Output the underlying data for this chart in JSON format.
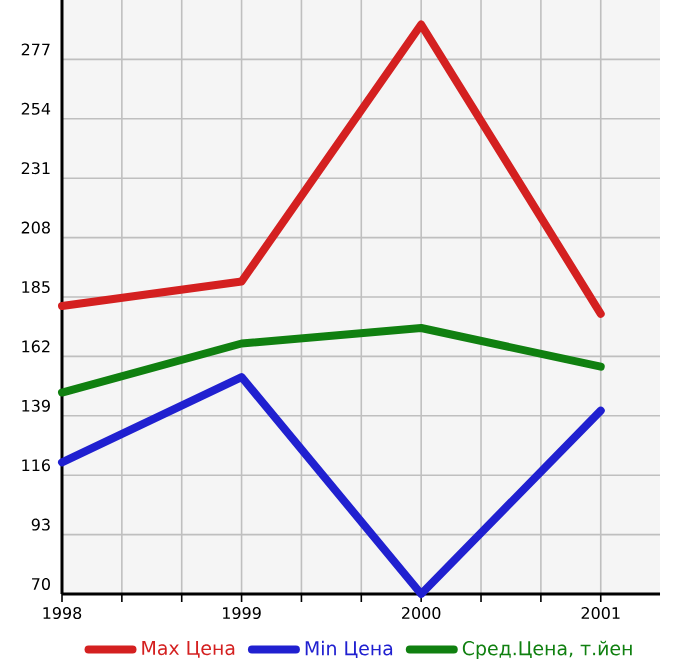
{
  "chart_data": {
    "type": "line",
    "x": [
      1998,
      1999,
      2000,
      2001
    ],
    "series": [
      {
        "name": "Max Цена",
        "color": "#d42020",
        "values": [
          181.5,
          191,
          290.5,
          178.5
        ]
      },
      {
        "name": "Min Цена",
        "color": "#2020d0",
        "values": [
          121,
          154,
          70,
          141
        ]
      },
      {
        "name": "Сред.Цена, т.йен",
        "color": "#108010",
        "values": [
          148,
          167,
          173,
          158
        ]
      }
    ],
    "xlim": [
      1998,
      2001.33
    ],
    "xticks": [
      1998,
      1999,
      2000,
      2001
    ],
    "ylim": [
      70,
      300
    ],
    "yticks": [
      70,
      93,
      116,
      139,
      162,
      185,
      208,
      231,
      254,
      277
    ],
    "grid": true,
    "legend": "bottom",
    "marker": "none",
    "line_style": "solid"
  }
}
